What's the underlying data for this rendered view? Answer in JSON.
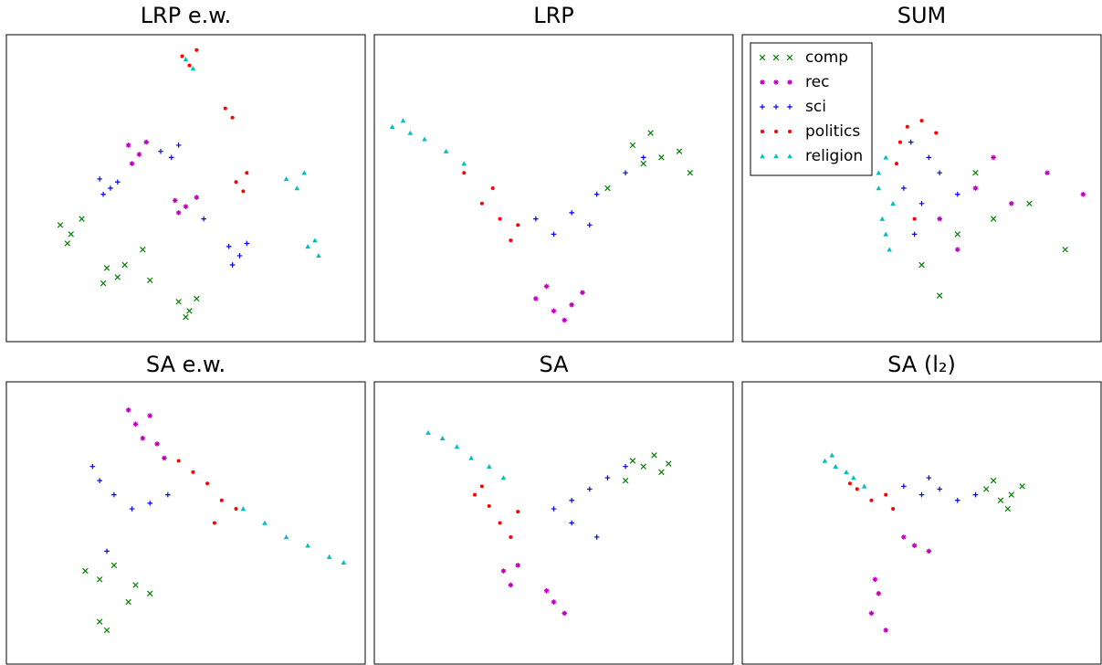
{
  "chart_data": [
    {
      "type": "scatter",
      "title": "LRP e.w.",
      "xlim": [
        0,
        100
      ],
      "ylim": [
        0,
        100
      ],
      "series": [
        {
          "color": "#008000",
          "marker": "x",
          "x": [
            15,
            18,
            21,
            17,
            28,
            31,
            33,
            27,
            48,
            51,
            53,
            50,
            38,
            40
          ],
          "y": [
            38,
            35,
            40,
            32,
            24,
            21,
            25,
            19,
            13,
            10,
            14,
            8,
            30,
            20
          ]
        },
        {
          "color": "#bf00bf",
          "marker": "*",
          "x": [
            34,
            37,
            39,
            35,
            47,
            50,
            53,
            48
          ],
          "y": [
            64,
            61,
            65,
            58,
            46,
            44,
            47,
            42
          ]
        },
        {
          "color": "#0000ff",
          "marker": "+",
          "x": [
            26,
            29,
            31,
            27,
            43,
            46,
            48,
            62,
            65,
            67,
            63,
            55
          ],
          "y": [
            53,
            50,
            52,
            48,
            62,
            60,
            64,
            31,
            28,
            32,
            25,
            40
          ]
        },
        {
          "color": "#ff0000",
          "marker": "o",
          "x": [
            49,
            51,
            53,
            61,
            63,
            64,
            66,
            67
          ],
          "y": [
            93,
            90,
            95,
            76,
            73,
            52,
            49,
            55
          ]
        },
        {
          "color": "#00bfbf",
          "marker": "^",
          "x": [
            50,
            52,
            78,
            81,
            83,
            84,
            87,
            86
          ],
          "y": [
            92,
            89,
            53,
            50,
            55,
            31,
            28,
            33
          ]
        }
      ]
    },
    {
      "type": "scatter",
      "title": "LRP",
      "xlim": [
        0,
        100
      ],
      "ylim": [
        0,
        100
      ],
      "series": [
        {
          "color": "#008000",
          "marker": "x",
          "x": [
            72,
            77,
            80,
            75,
            85,
            65,
            88
          ],
          "y": [
            64,
            68,
            60,
            58,
            62,
            50,
            55
          ]
        },
        {
          "color": "#bf00bf",
          "marker": "*",
          "x": [
            45,
            50,
            55,
            48,
            58,
            53
          ],
          "y": [
            14,
            10,
            12,
            18,
            16,
            7
          ]
        },
        {
          "color": "#0000ff",
          "marker": "+",
          "x": [
            45,
            55,
            62,
            70,
            75,
            50,
            60
          ],
          "y": [
            40,
            42,
            48,
            55,
            60,
            35,
            38
          ]
        },
        {
          "color": "#ff0000",
          "marker": "o",
          "x": [
            25,
            30,
            35,
            38,
            33,
            40
          ],
          "y": [
            55,
            45,
            40,
            33,
            50,
            38
          ]
        },
        {
          "color": "#00bfbf",
          "marker": "^",
          "x": [
            5,
            10,
            14,
            20,
            25,
            8
          ],
          "y": [
            70,
            68,
            66,
            62,
            58,
            72
          ]
        }
      ]
    },
    {
      "type": "scatter",
      "title": "SUM",
      "xlim": [
        0,
        100
      ],
      "ylim": [
        0,
        100
      ],
      "legend": "upper left",
      "series": [
        {
          "name": "comp",
          "color": "#008000",
          "marker": "x",
          "x": [
            50,
            60,
            70,
            80,
            90,
            55,
            65
          ],
          "y": [
            25,
            35,
            40,
            45,
            30,
            15,
            55
          ]
        },
        {
          "name": "rec",
          "color": "#bf00bf",
          "marker": "*",
          "x": [
            55,
            65,
            75,
            85,
            95,
            70,
            60
          ],
          "y": [
            40,
            50,
            45,
            55,
            48,
            60,
            30
          ]
        },
        {
          "name": "sci",
          "color": "#0000ff",
          "marker": "+",
          "x": [
            45,
            50,
            55,
            48,
            60,
            52,
            47
          ],
          "y": [
            50,
            45,
            55,
            35,
            48,
            60,
            65
          ]
        },
        {
          "name": "politics",
          "color": "#ff0000",
          "marker": "o",
          "x": [
            44,
            46,
            50,
            43,
            48,
            54
          ],
          "y": [
            65,
            70,
            72,
            58,
            40,
            68
          ]
        },
        {
          "name": "religion",
          "color": "#00bfbf",
          "marker": "^",
          "x": [
            38,
            39,
            40,
            41,
            42,
            38,
            40
          ],
          "y": [
            50,
            40,
            60,
            30,
            45,
            55,
            35
          ]
        }
      ]
    },
    {
      "type": "scatter",
      "title": "SA e.w.",
      "xlim": [
        0,
        100
      ],
      "ylim": [
        0,
        100
      ],
      "series": [
        {
          "color": "#008000",
          "marker": "x",
          "x": [
            22,
            26,
            30,
            36,
            40,
            26,
            28,
            34
          ],
          "y": [
            33,
            30,
            35,
            28,
            25,
            15,
            12,
            22
          ]
        },
        {
          "color": "#bf00bf",
          "marker": "*",
          "x": [
            34,
            36,
            38,
            40,
            42,
            44
          ],
          "y": [
            90,
            85,
            80,
            88,
            78,
            73
          ]
        },
        {
          "color": "#0000ff",
          "marker": "+",
          "x": [
            24,
            26,
            30,
            35,
            40,
            45,
            28
          ],
          "y": [
            70,
            65,
            60,
            55,
            57,
            60,
            40
          ]
        },
        {
          "color": "#ff0000",
          "marker": "o",
          "x": [
            48,
            52,
            56,
            60,
            64,
            58
          ],
          "y": [
            72,
            68,
            64,
            58,
            55,
            50
          ]
        },
        {
          "color": "#00bfbf",
          "marker": "^",
          "x": [
            66,
            72,
            78,
            84,
            90,
            94
          ],
          "y": [
            55,
            50,
            45,
            42,
            38,
            36
          ]
        }
      ]
    },
    {
      "type": "scatter",
      "title": "SA",
      "xlim": [
        0,
        100
      ],
      "ylim": [
        0,
        100
      ],
      "series": [
        {
          "color": "#008000",
          "marker": "x",
          "x": [
            72,
            75,
            78,
            80,
            70,
            82
          ],
          "y": [
            72,
            70,
            74,
            68,
            65,
            71
          ]
        },
        {
          "color": "#bf00bf",
          "marker": "*",
          "x": [
            36,
            38,
            40,
            50,
            53,
            48
          ],
          "y": [
            33,
            28,
            35,
            22,
            18,
            26
          ]
        },
        {
          "color": "#0000ff",
          "marker": "+",
          "x": [
            50,
            55,
            60,
            65,
            70,
            55,
            62
          ],
          "y": [
            55,
            58,
            62,
            66,
            70,
            50,
            45
          ]
        },
        {
          "color": "#ff0000",
          "marker": "o",
          "x": [
            28,
            32,
            35,
            38,
            30,
            40
          ],
          "y": [
            60,
            56,
            50,
            45,
            63,
            54
          ]
        },
        {
          "color": "#00bfbf",
          "marker": "^",
          "x": [
            15,
            19,
            23,
            27,
            32,
            36
          ],
          "y": [
            82,
            80,
            77,
            73,
            70,
            66
          ]
        }
      ]
    },
    {
      "type": "scatter",
      "title": "SA (l₂)",
      "xlim": [
        0,
        100
      ],
      "ylim": [
        0,
        100
      ],
      "series": [
        {
          "color": "#008000",
          "marker": "x",
          "x": [
            68,
            72,
            75,
            78,
            74,
            70
          ],
          "y": [
            62,
            58,
            60,
            63,
            55,
            65
          ]
        },
        {
          "color": "#bf00bf",
          "marker": "*",
          "x": [
            48,
            52,
            45,
            38,
            36,
            40,
            37
          ],
          "y": [
            42,
            40,
            45,
            25,
            18,
            12,
            30
          ]
        },
        {
          "color": "#0000ff",
          "marker": "+",
          "x": [
            45,
            50,
            55,
            60,
            65,
            52
          ],
          "y": [
            63,
            60,
            62,
            58,
            60,
            66
          ]
        },
        {
          "color": "#ff0000",
          "marker": "o",
          "x": [
            32,
            36,
            40,
            30,
            42
          ],
          "y": [
            62,
            58,
            60,
            64,
            55
          ]
        },
        {
          "color": "#00bfbf",
          "marker": "^",
          "x": [
            23,
            26,
            29,
            25,
            31,
            34
          ],
          "y": [
            72,
            70,
            68,
            74,
            66,
            63
          ]
        }
      ]
    }
  ]
}
